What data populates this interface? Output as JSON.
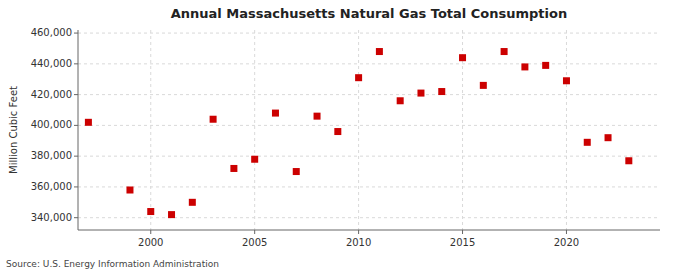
{
  "chart_data": {
    "type": "scatter",
    "title": "Annual Massachusetts Natural Gas Total Consumption",
    "ylabel": "Million Cubic Feet",
    "annotation": "Source: U.S. Energy Information Administration",
    "color": "#cc0000",
    "marker": "square",
    "grid": true,
    "xlim": [
      1996.5,
      2024.5
    ],
    "ylim": [
      332000,
      462000
    ],
    "xticks": [
      2000,
      2005,
      2010,
      2015,
      2020
    ],
    "yticks": [
      {
        "value": 340000,
        "label": "340,000"
      },
      {
        "value": 360000,
        "label": "360,000"
      },
      {
        "value": 380000,
        "label": "380,000"
      },
      {
        "value": 400000,
        "label": "400,000"
      },
      {
        "value": 420000,
        "label": "420,000"
      },
      {
        "value": 440000,
        "label": "440,000"
      },
      {
        "value": 460000,
        "label": "460,000"
      }
    ],
    "x": [
      1997,
      1999,
      2000,
      2001,
      2002,
      2003,
      2004,
      2005,
      2006,
      2007,
      2008,
      2009,
      2010,
      2011,
      2012,
      2013,
      2014,
      2015,
      2016,
      2017,
      2018,
      2019,
      2020,
      2021,
      2022,
      2023
    ],
    "values": [
      402000,
      358000,
      344000,
      342000,
      350000,
      404000,
      372000,
      378000,
      408000,
      370000,
      406000,
      396000,
      431000,
      448000,
      416000,
      421000,
      422000,
      444000,
      426000,
      448000,
      438000,
      439000,
      429000,
      389000,
      392000,
      377000
    ]
  }
}
